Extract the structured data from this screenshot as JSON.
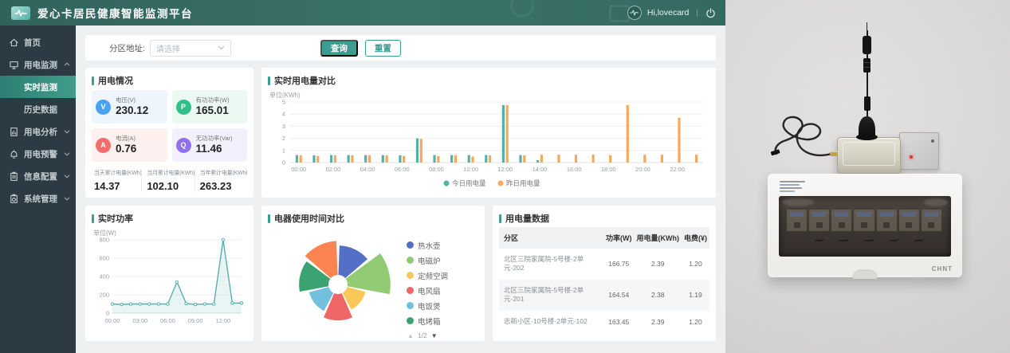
{
  "header": {
    "title": "爱心卡居民健康智能监测平台",
    "user_greeting": "Hi,lovecard",
    "divider": "|"
  },
  "sidebar": {
    "items": [
      {
        "label": "首页",
        "icon": "home-icon",
        "arrow": "",
        "children": []
      },
      {
        "label": "用电监测",
        "icon": "monitor-icon",
        "arrow": "up",
        "children": [
          {
            "label": "实时监测",
            "active": true
          },
          {
            "label": "历史数据",
            "active": false
          }
        ]
      },
      {
        "label": "用电分析",
        "icon": "analysis-icon",
        "arrow": "down",
        "children": []
      },
      {
        "label": "用电预警",
        "icon": "alert-icon",
        "arrow": "down",
        "children": []
      },
      {
        "label": "信息配置",
        "icon": "config-icon",
        "arrow": "down",
        "children": []
      },
      {
        "label": "系统管理",
        "icon": "system-icon",
        "arrow": "down",
        "children": []
      }
    ]
  },
  "filter": {
    "label": "分区地址:",
    "placeholder": "请选择",
    "query_button": "查询",
    "reset_button": "重置"
  },
  "usage_card": {
    "title": "用电情况",
    "tiles": [
      {
        "label": "电压(V)",
        "value": "230.12",
        "letter": "V",
        "color": "#4aa3f0",
        "bg": "#eef5fd"
      },
      {
        "label": "有功功率(W)",
        "value": "165.01",
        "letter": "P",
        "color": "#2fc08c",
        "bg": "#ecf9f3"
      },
      {
        "label": "电流(A)",
        "value": "0.76",
        "letter": "A",
        "color": "#f56c6c",
        "bg": "#fdf0ef"
      },
      {
        "label": "无功功率(Var)",
        "value": "11.46",
        "letter": "Q",
        "color": "#9070f0",
        "bg": "#f3f0fd"
      }
    ],
    "totals": [
      {
        "label": "当天累计电量(KWh)",
        "value": "14.37"
      },
      {
        "label": "当月累计电量(KWh)",
        "value": "102.10"
      },
      {
        "label": "当年累计电量(KWh)",
        "value": "263.23"
      }
    ]
  },
  "chart_data": [
    {
      "type": "bar",
      "title": "实时用电量对比",
      "unit_label": "单位(KWh)",
      "ylim": [
        0,
        5
      ],
      "yticks": [
        0,
        1,
        2,
        3,
        4,
        5
      ],
      "x": [
        "00:00",
        "01:00",
        "02:00",
        "03:00",
        "04:00",
        "05:00",
        "06:00",
        "07:00",
        "08:00",
        "09:00",
        "10:00",
        "11:00",
        "12:00",
        "13:00",
        "14:00",
        "15:00",
        "16:00",
        "17:00",
        "18:00",
        "19:00",
        "20:00",
        "21:00",
        "22:00",
        "23:00"
      ],
      "x_label_every": 2,
      "legend_position": "bottom",
      "series": [
        {
          "name": "今日用电量",
          "color": "#56b0aa",
          "values": [
            0.62,
            0.6,
            0.62,
            0.62,
            0.62,
            0.62,
            0.6,
            2.0,
            0.62,
            0.62,
            0.62,
            0.62,
            4.75,
            0.62,
            0.2,
            null,
            null,
            null,
            null,
            null,
            null,
            null,
            null,
            null
          ]
        },
        {
          "name": "昨日用电量",
          "color": "#f6a95a",
          "values": [
            0.6,
            0.55,
            0.6,
            0.6,
            0.6,
            0.6,
            0.55,
            1.95,
            0.55,
            0.6,
            0.5,
            0.6,
            4.75,
            0.6,
            0.65,
            0.65,
            0.65,
            0.65,
            0.6,
            4.75,
            0.65,
            0.65,
            3.7,
            0.65
          ]
        }
      ]
    },
    {
      "type": "line",
      "title": "实时功率",
      "unit_label": "单位(W)",
      "ylim": [
        0,
        800
      ],
      "yticks": [
        0,
        200,
        400,
        600,
        800
      ],
      "color": "#57b1ab",
      "x": [
        "00:00",
        "01:00",
        "02:00",
        "03:00",
        "04:00",
        "05:00",
        "06:00",
        "07:00",
        "08:00",
        "09:00",
        "10:00",
        "11:00",
        "12:00",
        "13:00",
        "14:00"
      ],
      "x_label_every": 3,
      "values": [
        100,
        95,
        100,
        100,
        100,
        100,
        100,
        340,
        105,
        95,
        100,
        100,
        800,
        110,
        110
      ]
    },
    {
      "type": "pie",
      "subtype": "rose",
      "title": "电器使用时间对比",
      "legend_position": "right",
      "legend_pager": {
        "up": "▲",
        "page": "1/2",
        "down": "▼"
      },
      "segments": [
        {
          "name": "热水壶",
          "value": 5.2,
          "color": "#5470C6"
        },
        {
          "name": "电磁炉",
          "value": 7.0,
          "color": "#91CC75"
        },
        {
          "name": "定频空调",
          "value": 3.8,
          "color": "#FAC858"
        },
        {
          "name": "电风扇",
          "value": 4.8,
          "color": "#EE6666"
        },
        {
          "name": "电饭煲",
          "value": 4.0,
          "color": "#73C0DE"
        },
        {
          "name": "电烤箱",
          "value": 5.2,
          "color": "#3BA272"
        },
        {
          "name": "",
          "value": 5.8,
          "color": "#FC8452"
        }
      ],
      "legend_visible_count": 6
    }
  ],
  "table_card": {
    "title": "用电量数据",
    "headers": [
      "分区",
      "功率(W)",
      "用电量(KWh)",
      "电费(¥)"
    ],
    "rows": [
      {
        "zone": "北区三院家属院-5号楼-2单元-202",
        "power": "166.75",
        "usage": "2.39",
        "fee": "1.20"
      },
      {
        "zone": "北区三院家属院-5号楼-2单元-201",
        "power": "164.54",
        "usage": "2.38",
        "fee": "1.19"
      },
      {
        "zone": "志新小区-10号楼-2单元-102",
        "power": "163.45",
        "usage": "2.39",
        "fee": "1.20"
      }
    ]
  },
  "photo": {
    "brand_label": "CHNT"
  },
  "colors": {
    "accent": "#3a9e93",
    "header_bg": "#356a63",
    "sidebar_bg": "#2b3a43",
    "sidebar_active": "#3a9184"
  }
}
